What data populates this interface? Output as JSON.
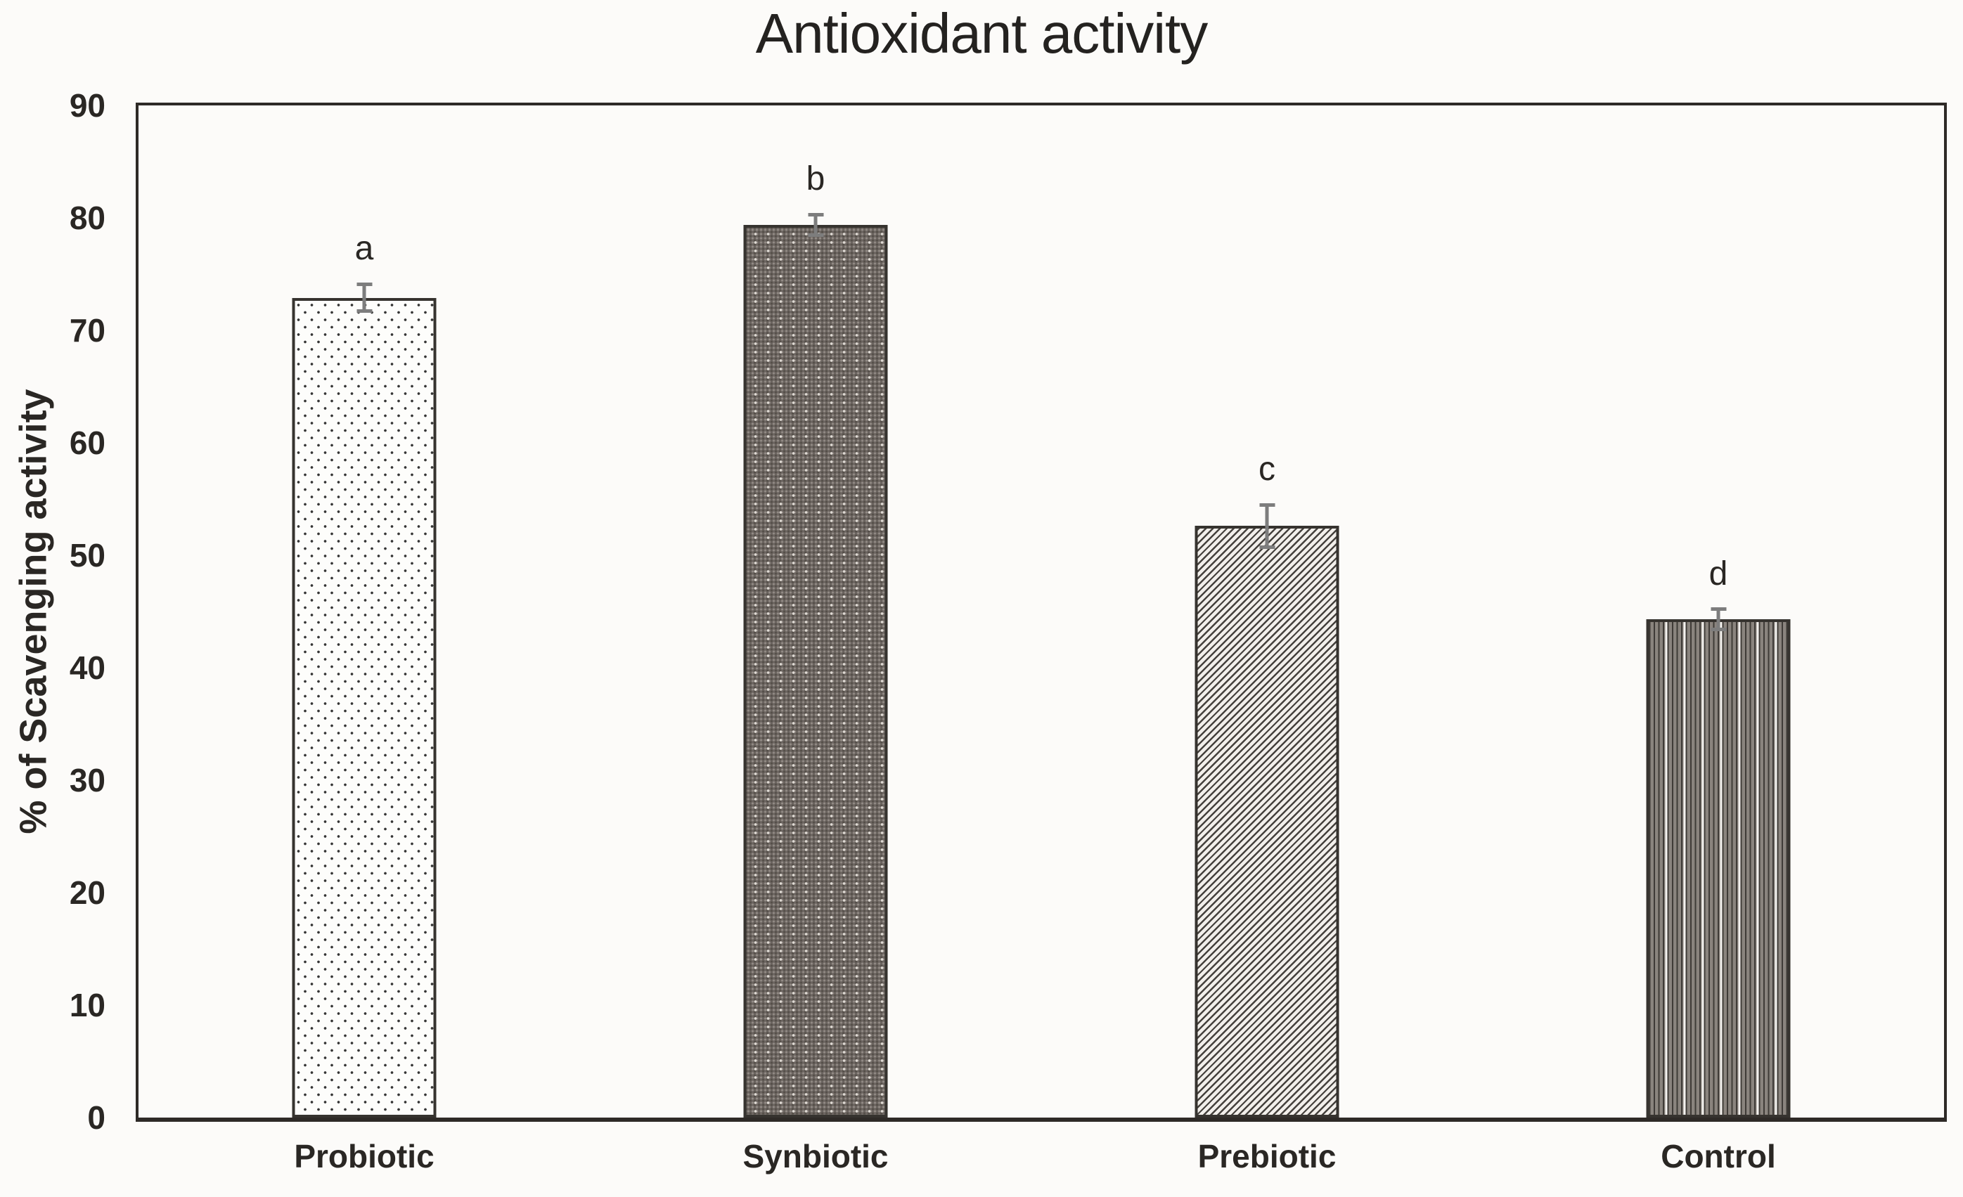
{
  "figure": {
    "background": "#fcfbf9",
    "frame_color": "#2e2a27",
    "text_color": "#2a2724",
    "error_bar_color": "#7d7d7d"
  },
  "chart_data": {
    "type": "bar",
    "title": "Antioxidant activity",
    "xlabel": "",
    "ylabel": "% of Scavenging activity",
    "categories": [
      "Probiotic",
      "Synbiotic",
      "Prebiotic",
      "Control"
    ],
    "values": [
      72.9,
      79.4,
      52.6,
      44.3
    ],
    "error_bars": [
      1.2,
      0.9,
      1.9,
      0.9
    ],
    "significance_letters": [
      "a",
      "b",
      "c",
      "d"
    ],
    "ylim": [
      0,
      90
    ],
    "yticks": [
      0,
      10,
      20,
      30,
      40,
      50,
      60,
      70,
      80,
      90
    ],
    "grid": false,
    "legend": "none",
    "bar_fill_patterns": [
      "dotted",
      "dark-dotted-grid",
      "upward-diagonal-stripes",
      "vertical-stripes"
    ],
    "bar_colors": {
      "dotted_dot": "#363636",
      "dotted_bg": "#fdfdfb",
      "dark_grid_base": "#6b6460",
      "stripe_dark": "#45413d",
      "stripe_light": "#f2efeb",
      "bar_border": "#36332f"
    }
  }
}
